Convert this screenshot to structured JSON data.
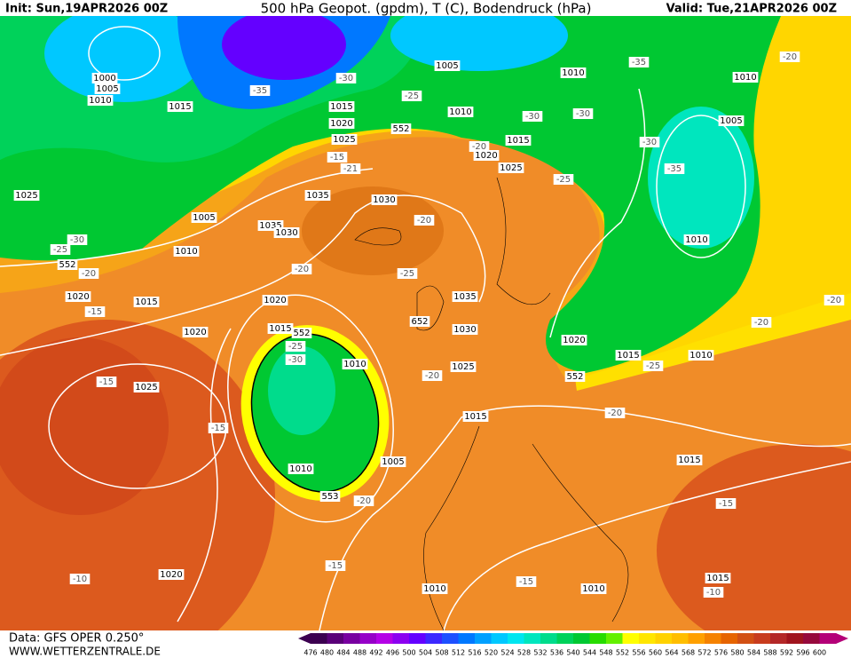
{
  "header": {
    "init": "Init: Sun,19APR2026 00Z",
    "title": "500 hPa Geopot. (gpdm), T (C), Bodendruck (hPa)",
    "valid": "Valid: Tue,21APR2026 00Z"
  },
  "footer": {
    "data": "Data: GFS OPER 0.250°",
    "site": "WWW.WETTERZENTRALE.DE"
  },
  "colorbar": {
    "labels": [
      "476",
      "480",
      "484",
      "488",
      "492",
      "496",
      "500",
      "504",
      "508",
      "512",
      "516",
      "520",
      "524",
      "528",
      "532",
      "536",
      "540",
      "544",
      "548",
      "552",
      "556",
      "560",
      "564",
      "568",
      "572",
      "576",
      "580",
      "584",
      "588",
      "592",
      "596",
      "600"
    ],
    "colors": [
      "#3c0050",
      "#5a0078",
      "#7800a0",
      "#9600c8",
      "#b400e6",
      "#8c00f0",
      "#6400ff",
      "#3c28ff",
      "#1e50ff",
      "#0078ff",
      "#00a0ff",
      "#00c8ff",
      "#00e6f0",
      "#00e6be",
      "#00dc8c",
      "#00d25a",
      "#00c832",
      "#28dc00",
      "#64f000",
      "#ffff00",
      "#ffe600",
      "#ffd200",
      "#ffbe00",
      "#ffa000",
      "#f58200",
      "#e66400",
      "#d25014",
      "#c83c1e",
      "#b42828",
      "#a0141e",
      "#960a3c",
      "#b40078"
    ]
  },
  "map_labels": [
    "1000",
    "1005",
    "1010",
    "1015",
    "1025",
    "1005",
    "1010",
    "1015",
    "1020",
    "-15",
    "-25",
    "552",
    "-20",
    "-30",
    "1020",
    "1025",
    "-15",
    "-15",
    "1020",
    "-10",
    "1010",
    "553",
    "-20",
    "1005",
    "1010",
    "1015",
    "552",
    "-25",
    "-30",
    "1020",
    "-20",
    "1035",
    "1030",
    "1035",
    "1030",
    "-20",
    "-25",
    "1025",
    "1020",
    "1015",
    "-30",
    "-35",
    "1005",
    "1010",
    "-25",
    "552",
    "-21",
    "-15",
    "1015",
    "1020",
    "1025",
    "-20",
    "-25",
    "-30",
    "-30",
    "1010",
    "-35",
    "-30",
    "-35",
    "1005",
    "1010",
    "-20",
    "1010",
    "1035",
    "1030",
    "1025",
    "652",
    "-20",
    "1015",
    "1020",
    "1015",
    "1010",
    "-25",
    "552",
    "-20",
    "1015",
    "-20",
    "-20",
    "-15",
    "1015",
    "-10",
    "1010",
    "-15",
    "1010",
    "-15"
  ]
}
